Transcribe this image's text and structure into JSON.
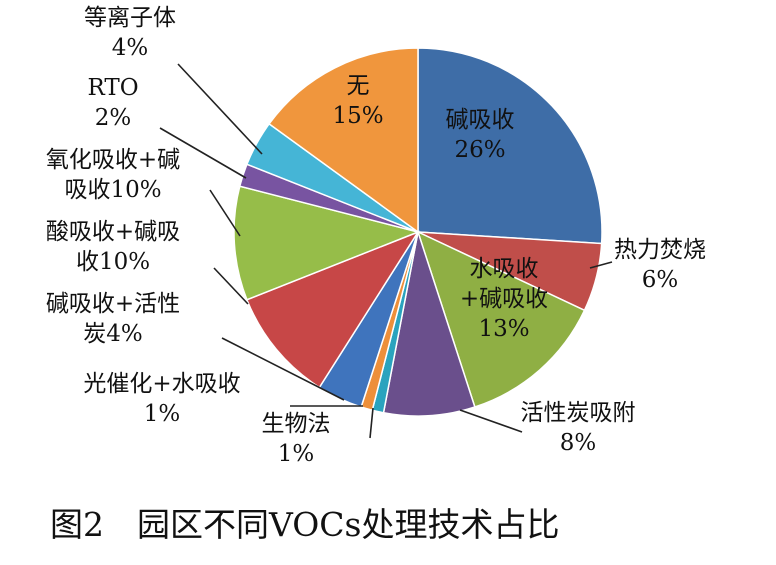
{
  "chart_data": {
    "type": "pie",
    "title": "",
    "caption": "图2　园区不同VOCs处理技术占比",
    "slices": [
      {
        "label": "碱吸收",
        "value": 26,
        "value_label": "26%",
        "color": "#3e6da7"
      },
      {
        "label": "热力焚烧",
        "value": 6,
        "value_label": "6%",
        "color": "#c04e4a"
      },
      {
        "label": "水吸收\n+碱吸收",
        "value": 13,
        "value_label": "13%",
        "color": "#8faf44"
      },
      {
        "label": "活性炭吸附",
        "value": 8,
        "value_label": "8%",
        "color": "#6a4f8c"
      },
      {
        "label": "生物法",
        "value": 1,
        "value_label": "1%",
        "color": "#2aa3be"
      },
      {
        "label": "光催化+水吸收",
        "value": 1,
        "value_label": "1%",
        "color": "#ed8f3a"
      },
      {
        "label": "碱吸收+活性\n炭",
        "value": 4,
        "value_label": "4%",
        "color": "#3f74bd"
      },
      {
        "label": "酸吸收+碱吸\n收",
        "value": 10,
        "value_label": "10%",
        "color": "#c74747"
      },
      {
        "label": "氧化吸收+碱\n吸收",
        "value": 10,
        "value_label": "10%",
        "color": "#96bd49"
      },
      {
        "label": "RTO",
        "value": 2,
        "value_label": "2%",
        "color": "#7854a1"
      },
      {
        "label": "等离子体",
        "value": 4,
        "value_label": "4%",
        "color": "#45b5d6"
      },
      {
        "label": "无",
        "value": 15,
        "value_label": "15%",
        "color": "#f0963d"
      }
    ]
  }
}
